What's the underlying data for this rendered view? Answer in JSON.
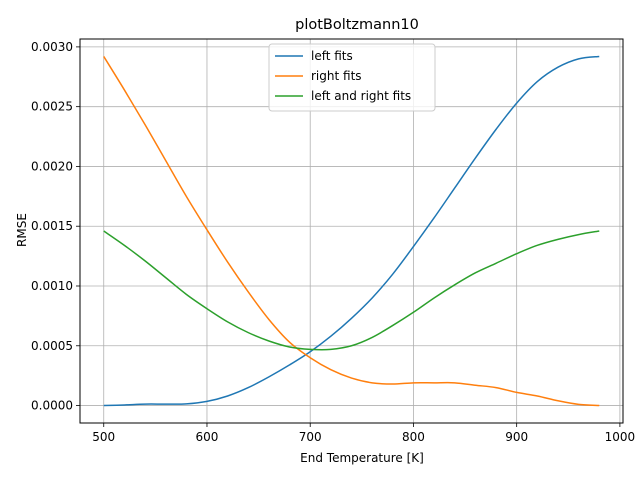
{
  "chart_data": {
    "type": "line",
    "title": "plotBoltzmann10",
    "xlabel": "End Temperature [K]",
    "ylabel": "RMSE",
    "xlim": [
      477,
      1003
    ],
    "ylim": [
      -0.000146,
      0.003066
    ],
    "xticks": [
      500,
      600,
      700,
      800,
      900,
      1000
    ],
    "xtick_labels": [
      "500",
      "600",
      "700",
      "800",
      "900",
      "1000"
    ],
    "yticks": [
      0.0,
      0.0005,
      0.001,
      0.0015,
      0.002,
      0.0025,
      0.003
    ],
    "ytick_labels": [
      "0.0000",
      "0.0005",
      "0.0010",
      "0.0015",
      "0.0020",
      "0.0025",
      "0.0030"
    ],
    "grid": true,
    "legend_position": "upper-center",
    "series": [
      {
        "name": "left fits",
        "color": "#1f77b4",
        "x": [
          500,
          520,
          540,
          560,
          580,
          600,
          620,
          640,
          660,
          680,
          700,
          720,
          740,
          760,
          780,
          800,
          820,
          840,
          860,
          880,
          900,
          920,
          940,
          960,
          980
        ],
        "y": [
          0.0,
          5e-06,
          1.2e-05,
          1.2e-05,
          1.4e-05,
          3.5e-05,
          8e-05,
          0.00015,
          0.00024,
          0.00034,
          0.00045,
          0.00058,
          0.00073,
          0.0009,
          0.0011,
          0.00133,
          0.00157,
          0.00182,
          0.00207,
          0.00231,
          0.00253,
          0.00271,
          0.00283,
          0.0029,
          0.00292
        ]
      },
      {
        "name": "right fits",
        "color": "#ff7f0e",
        "x": [
          500,
          520,
          540,
          560,
          580,
          600,
          620,
          640,
          660,
          680,
          700,
          720,
          740,
          760,
          780,
          800,
          820,
          840,
          860,
          880,
          900,
          920,
          940,
          960,
          980
        ],
        "y": [
          0.00292,
          0.00264,
          0.00235,
          0.00205,
          0.00175,
          0.00147,
          0.0012,
          0.00095,
          0.00072,
          0.00053,
          0.0004,
          0.0003,
          0.00023,
          0.00019,
          0.00018,
          0.00019,
          0.00019,
          0.00019,
          0.00017,
          0.00015,
          0.00011,
          8e-05,
          4e-05,
          1e-05,
          0.0
        ]
      },
      {
        "name": "left and right fits",
        "color": "#2ca02c",
        "x": [
          500,
          520,
          540,
          560,
          580,
          600,
          620,
          640,
          660,
          680,
          700,
          720,
          740,
          760,
          780,
          800,
          820,
          840,
          860,
          880,
          900,
          920,
          940,
          960,
          980
        ],
        "y": [
          0.00146,
          0.00134,
          0.00121,
          0.00107,
          0.00093,
          0.00081,
          0.0007,
          0.00061,
          0.00054,
          0.00049,
          0.00047,
          0.00047,
          0.0005,
          0.00057,
          0.00067,
          0.00078,
          0.0009,
          0.00101,
          0.00111,
          0.00119,
          0.00127,
          0.00134,
          0.00139,
          0.00143,
          0.00146
        ]
      }
    ]
  }
}
